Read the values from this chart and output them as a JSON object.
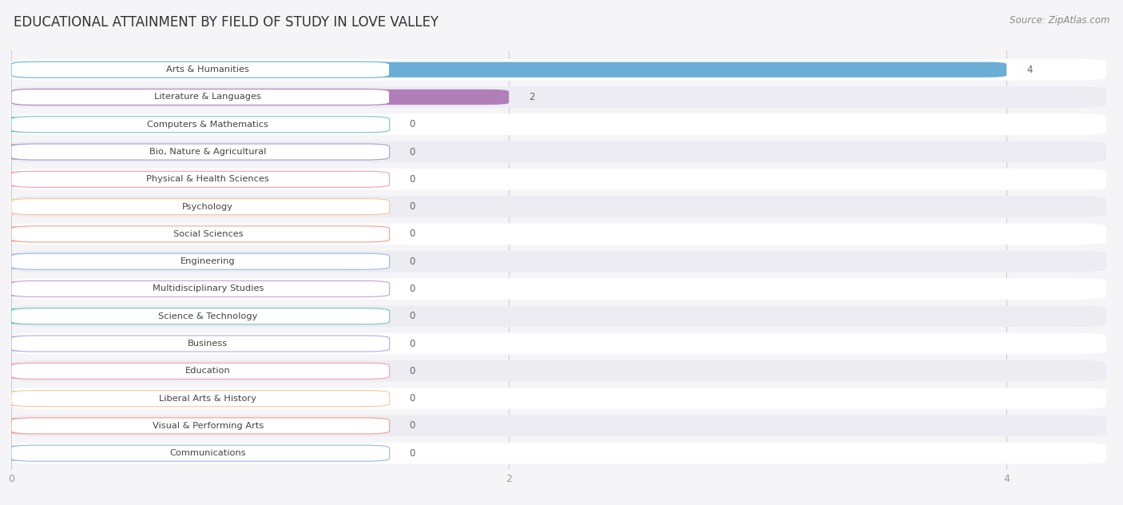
{
  "title": "EDUCATIONAL ATTAINMENT BY FIELD OF STUDY IN LOVE VALLEY",
  "source": "Source: ZipAtlas.com",
  "categories": [
    "Arts & Humanities",
    "Literature & Languages",
    "Computers & Mathematics",
    "Bio, Nature & Agricultural",
    "Physical & Health Sciences",
    "Psychology",
    "Social Sciences",
    "Engineering",
    "Multidisciplinary Studies",
    "Science & Technology",
    "Business",
    "Education",
    "Liberal Arts & History",
    "Visual & Performing Arts",
    "Communications"
  ],
  "values": [
    4,
    2,
    0,
    0,
    0,
    0,
    0,
    0,
    0,
    0,
    0,
    0,
    0,
    0,
    0
  ],
  "bar_colors": [
    "#6aaed6",
    "#b07fba",
    "#72c8bf",
    "#a89fd4",
    "#f4a0b5",
    "#f7ca98",
    "#f4a090",
    "#98bce0",
    "#c9a0d4",
    "#72c8b8",
    "#b0aee0",
    "#f4a0b5",
    "#f7ca98",
    "#f4a090",
    "#98bce0"
  ],
  "xlim": [
    0,
    4.4
  ],
  "xticks": [
    0,
    2,
    4
  ],
  "background_color": "#f5f5f8",
  "row_bg_even": "#ffffff",
  "row_bg_odd": "#ececf2"
}
